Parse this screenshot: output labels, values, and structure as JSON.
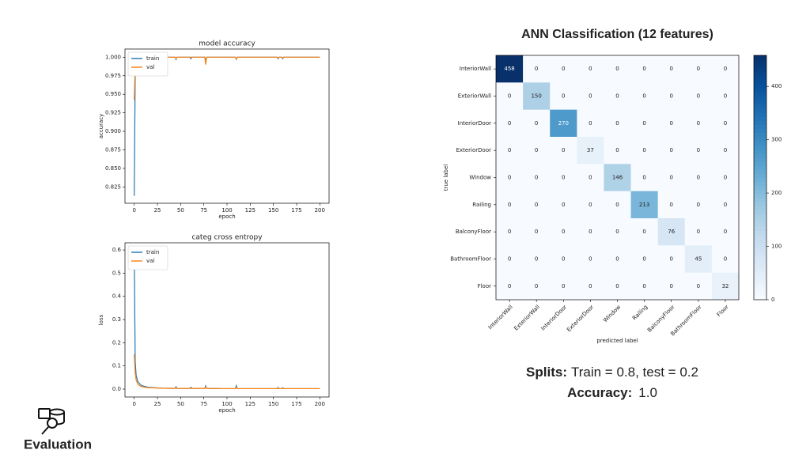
{
  "chart_data": [
    {
      "type": "line",
      "title": "model accuracy",
      "xlabel": "epoch",
      "ylabel": "accuracy",
      "x": [
        0,
        1,
        2,
        4,
        8,
        15,
        30,
        44,
        45,
        46,
        60,
        61,
        62,
        76,
        77,
        78,
        95,
        109,
        110,
        111,
        130,
        154,
        155,
        156,
        159,
        160,
        161,
        180,
        200
      ],
      "series": [
        {
          "name": "train",
          "color": "#1f77b4",
          "values": [
            0.813,
            0.975,
            0.993,
            0.997,
            0.999,
            1.0,
            1.0,
            1.0,
            0.997,
            1.0,
            1.0,
            0.998,
            1.0,
            1.0,
            0.996,
            1.0,
            1.0,
            1.0,
            0.997,
            1.0,
            1.0,
            1.0,
            0.998,
            1.0,
            1.0,
            0.998,
            1.0,
            1.0,
            1.0
          ]
        },
        {
          "name": "val",
          "color": "#ff7f0e",
          "values": [
            0.942,
            0.99,
            0.997,
            0.999,
            1.0,
            1.0,
            1.0,
            1.0,
            0.998,
            1.0,
            1.0,
            1.0,
            1.0,
            1.0,
            0.99,
            1.0,
            1.0,
            1.0,
            0.997,
            1.0,
            1.0,
            1.0,
            0.999,
            1.0,
            1.0,
            0.999,
            1.0,
            1.0,
            1.0
          ]
        }
      ],
      "xlim": [
        -10,
        210
      ],
      "xticks": [
        0,
        25,
        50,
        75,
        100,
        125,
        150,
        175,
        200
      ],
      "ylim": [
        0.803,
        1.011
      ],
      "yticks": [
        0.825,
        {
          "value": 0.85,
          "label": "0.850"
        },
        0.875,
        {
          "value": 0.9,
          "label": "0.900"
        },
        0.925,
        {
          "value": 0.95,
          "label": "0.950"
        },
        0.975,
        {
          "value": 1.0,
          "label": "1.000"
        }
      ],
      "legend": "upper left"
    },
    {
      "type": "line",
      "title": "categ cross entropy",
      "xlabel": "epoch",
      "ylabel": "loss",
      "x": [
        0,
        1,
        2,
        4,
        8,
        15,
        30,
        44,
        45,
        46,
        60,
        61,
        62,
        76,
        77,
        78,
        95,
        109,
        110,
        111,
        130,
        154,
        155,
        156,
        159,
        160,
        161,
        180,
        200
      ],
      "series": [
        {
          "name": "train",
          "color": "#1f77b4",
          "values": [
            0.6,
            0.12,
            0.06,
            0.03,
            0.015,
            0.008,
            0.004,
            0.003,
            0.01,
            0.003,
            0.003,
            0.008,
            0.003,
            0.003,
            0.014,
            0.003,
            0.002,
            0.002,
            0.015,
            0.002,
            0.002,
            0.002,
            0.007,
            0.002,
            0.002,
            0.006,
            0.002,
            0.002,
            0.002
          ]
        },
        {
          "name": "val",
          "color": "#ff7f0e",
          "values": [
            0.15,
            0.07,
            0.04,
            0.02,
            0.01,
            0.006,
            0.004,
            0.003,
            0.006,
            0.003,
            0.003,
            0.004,
            0.003,
            0.003,
            0.01,
            0.003,
            0.002,
            0.002,
            0.008,
            0.002,
            0.002,
            0.002,
            0.004,
            0.002,
            0.002,
            0.004,
            0.002,
            0.002,
            0.002
          ]
        }
      ],
      "xlim": [
        -10,
        210
      ],
      "xticks": [
        0,
        25,
        50,
        75,
        100,
        125,
        150,
        175,
        200
      ],
      "ylim": [
        -0.034,
        0.631
      ],
      "yticks": [
        {
          "value": 0,
          "label": "0.0"
        },
        0.1,
        0.2,
        0.3,
        0.4,
        0.5,
        0.6
      ],
      "legend": "upper left"
    },
    {
      "type": "heatmap",
      "title": "ANN Classification (12 features)",
      "xlabel": "predicted label",
      "ylabel": "true label",
      "categories": [
        "InteriorWall",
        "ExteriorWall",
        "InteriorDoor",
        "ExteriorDoor",
        "Window",
        "Railing",
        "BalconyFloor",
        "BathroomFloor",
        "Floor"
      ],
      "values": [
        [
          458,
          0,
          0,
          0,
          0,
          0,
          0,
          0,
          0
        ],
        [
          0,
          150,
          0,
          0,
          0,
          0,
          0,
          0,
          0
        ],
        [
          0,
          0,
          270,
          0,
          0,
          0,
          0,
          0,
          0
        ],
        [
          0,
          0,
          0,
          37,
          0,
          0,
          0,
          0,
          0
        ],
        [
          0,
          0,
          0,
          0,
          146,
          0,
          0,
          0,
          0
        ],
        [
          0,
          0,
          0,
          0,
          0,
          213,
          0,
          0,
          0
        ],
        [
          0,
          0,
          0,
          0,
          0,
          0,
          76,
          0,
          0
        ],
        [
          0,
          0,
          0,
          0,
          0,
          0,
          0,
          45,
          0
        ],
        [
          0,
          0,
          0,
          0,
          0,
          0,
          0,
          0,
          32
        ]
      ],
      "colormap": "Blues",
      "clim": [
        0,
        458
      ],
      "colorbar_ticks": [
        0,
        100,
        200,
        300,
        400
      ]
    }
  ],
  "summary": {
    "splits_label": "Splits:",
    "splits_text": "Train = 0.8, test = 0.2",
    "accuracy_label": "Accuracy:",
    "accuracy_text": "1.0"
  },
  "section": "Evaluation"
}
